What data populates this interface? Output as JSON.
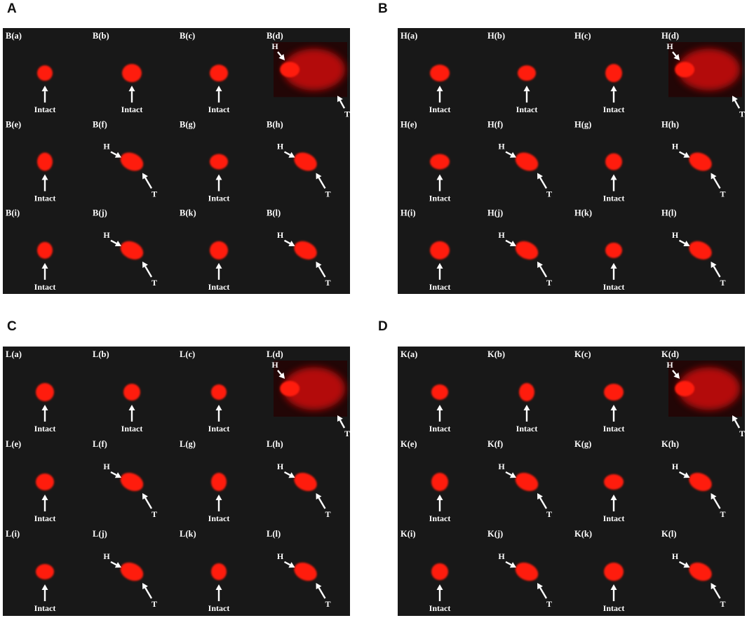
{
  "panels": [
    {
      "letter": "A",
      "cells": [
        {
          "label": "B(a)",
          "kind": "intact"
        },
        {
          "label": "B(b)",
          "kind": "intact"
        },
        {
          "label": "B(c)",
          "kind": "intact"
        },
        {
          "label": "B(d)",
          "kind": "comet-large"
        },
        {
          "label": "B(e)",
          "kind": "intact"
        },
        {
          "label": "B(f)",
          "kind": "ht"
        },
        {
          "label": "B(g)",
          "kind": "intact"
        },
        {
          "label": "B(h)",
          "kind": "ht"
        },
        {
          "label": "B(i)",
          "kind": "intact"
        },
        {
          "label": "B(j)",
          "kind": "ht"
        },
        {
          "label": "B(k)",
          "kind": "intact"
        },
        {
          "label": "B(l)",
          "kind": "ht"
        }
      ]
    },
    {
      "letter": "B",
      "cells": [
        {
          "label": "H(a)",
          "kind": "intact"
        },
        {
          "label": "H(b)",
          "kind": "intact"
        },
        {
          "label": "H(c)",
          "kind": "intact"
        },
        {
          "label": "H(d)",
          "kind": "comet-large"
        },
        {
          "label": "H(e)",
          "kind": "intact"
        },
        {
          "label": "H(f)",
          "kind": "ht"
        },
        {
          "label": "H(g)",
          "kind": "intact"
        },
        {
          "label": "H(h)",
          "kind": "ht"
        },
        {
          "label": "H(i)",
          "kind": "intact"
        },
        {
          "label": "H(j)",
          "kind": "ht"
        },
        {
          "label": "H(k)",
          "kind": "intact"
        },
        {
          "label": "H(l)",
          "kind": "ht"
        }
      ]
    },
    {
      "letter": "C",
      "cells": [
        {
          "label": "L(a)",
          "kind": "intact"
        },
        {
          "label": "L(b)",
          "kind": "intact"
        },
        {
          "label": "L(c)",
          "kind": "intact"
        },
        {
          "label": "L(d)",
          "kind": "comet-large"
        },
        {
          "label": "L(e)",
          "kind": "intact"
        },
        {
          "label": "L(f)",
          "kind": "ht"
        },
        {
          "label": "L(g)",
          "kind": "intact"
        },
        {
          "label": "L(h)",
          "kind": "ht"
        },
        {
          "label": "L(i)",
          "kind": "intact"
        },
        {
          "label": "L(j)",
          "kind": "ht"
        },
        {
          "label": "L(k)",
          "kind": "intact"
        },
        {
          "label": "L(l)",
          "kind": "ht"
        }
      ]
    },
    {
      "letter": "D",
      "cells": [
        {
          "label": "K(a)",
          "kind": "intact"
        },
        {
          "label": "K(b)",
          "kind": "intact"
        },
        {
          "label": "K(c)",
          "kind": "intact"
        },
        {
          "label": "K(d)",
          "kind": "comet-large"
        },
        {
          "label": "K(e)",
          "kind": "intact"
        },
        {
          "label": "K(f)",
          "kind": "ht"
        },
        {
          "label": "K(g)",
          "kind": "intact"
        },
        {
          "label": "K(h)",
          "kind": "ht"
        },
        {
          "label": "K(i)",
          "kind": "intact"
        },
        {
          "label": "K(j)",
          "kind": "ht"
        },
        {
          "label": "K(k)",
          "kind": "intact"
        },
        {
          "label": "K(l)",
          "kind": "ht"
        }
      ]
    }
  ],
  "annotations": {
    "intact": "Intact",
    "head": "H",
    "tail": "T"
  },
  "colors": {
    "panel_bg": "#181818",
    "nucleus": "#ff1a0a",
    "nucleus_dim": "#d81108",
    "text": "#ffffff"
  }
}
